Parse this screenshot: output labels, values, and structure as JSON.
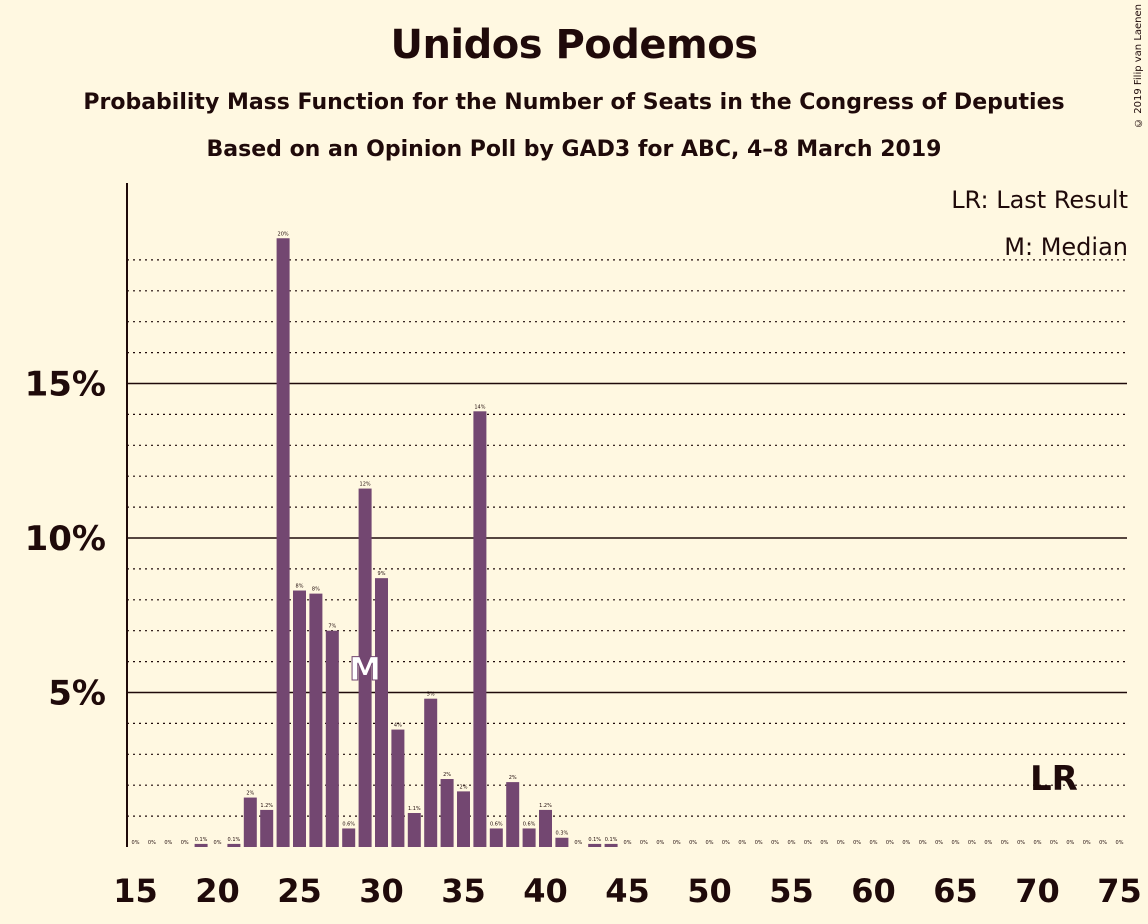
{
  "chart_data": {
    "type": "bar",
    "title": "Unidos Podemos",
    "subtitle": "Probability Mass Function for the Number of Seats in the Congress of Deputies",
    "subtitle2": "Based on an Opinion Poll by GAD3 for ABC, 4–8 March 2019",
    "copyright": "© 2019 Filip van Laenen",
    "legend": {
      "last_result": "LR: Last Result",
      "median": "M: Median"
    },
    "x": [
      15,
      16,
      17,
      18,
      19,
      20,
      21,
      22,
      23,
      24,
      25,
      26,
      27,
      28,
      29,
      30,
      31,
      32,
      33,
      34,
      35,
      36,
      37,
      38,
      39,
      40,
      41,
      42,
      43,
      44,
      45,
      46,
      47,
      48,
      49,
      50,
      51,
      52,
      53,
      54,
      55,
      56,
      57,
      58,
      59,
      60,
      61,
      62,
      63,
      64,
      65,
      66,
      67,
      68,
      69,
      70,
      71,
      72,
      73,
      74,
      75
    ],
    "values": [
      0,
      0,
      0,
      0,
      0.1,
      0,
      0.1,
      1.6,
      1.2,
      19.7,
      8.3,
      8.2,
      7.0,
      0.6,
      11.6,
      8.7,
      3.8,
      1.1,
      4.8,
      2.2,
      1.8,
      14.1,
      0.6,
      2.1,
      0.6,
      1.2,
      0.3,
      0,
      0.1,
      0.1,
      0,
      0,
      0,
      0,
      0,
      0,
      0,
      0,
      0,
      0,
      0,
      0,
      0,
      0,
      0,
      0,
      0,
      0,
      0,
      0,
      0,
      0,
      0,
      0,
      0,
      0,
      0,
      0,
      0,
      0,
      0
    ],
    "value_labels": [
      "0%",
      "0%",
      "0%",
      "0%",
      "0.1%",
      "0%",
      "0.1%",
      "2%",
      "1.2%",
      "20%",
      "8%",
      "8%",
      "7%",
      "0.6%",
      "12%",
      "9%",
      "4%",
      "1.1%",
      "5%",
      "2%",
      "2%",
      "14%",
      "0.6%",
      "2%",
      "0.6%",
      "1.2%",
      "0.3%",
      "0%",
      "0.1%",
      "0.1%",
      "0%",
      "0%",
      "0%",
      "0%",
      "0%",
      "0%",
      "0%",
      "0%",
      "0%",
      "0%",
      "0%",
      "0%",
      "0%",
      "0%",
      "0%",
      "0%",
      "0%",
      "0%",
      "0%",
      "0%",
      "0%",
      "0%",
      "0%",
      "0%",
      "0%",
      "0%",
      "0%",
      "0%",
      "0%",
      "0%",
      "0%"
    ],
    "x_ticks": [
      15,
      20,
      25,
      30,
      35,
      40,
      45,
      50,
      55,
      60,
      65,
      70,
      75
    ],
    "x_tick_labels": [
      "15",
      "20",
      "25",
      "30",
      "35",
      "40",
      "45",
      "50",
      "55",
      "60",
      "65",
      "70",
      "75"
    ],
    "y_ticks": [
      5,
      10,
      15
    ],
    "y_tick_labels": [
      "5%",
      "10%",
      "15%"
    ],
    "ylim": [
      0,
      21.5
    ],
    "median": 29,
    "median_label": "M",
    "last_result": 71,
    "last_result_label": "LR",
    "bar_color": "#734771",
    "background": "#fff8e1",
    "grid": true
  }
}
